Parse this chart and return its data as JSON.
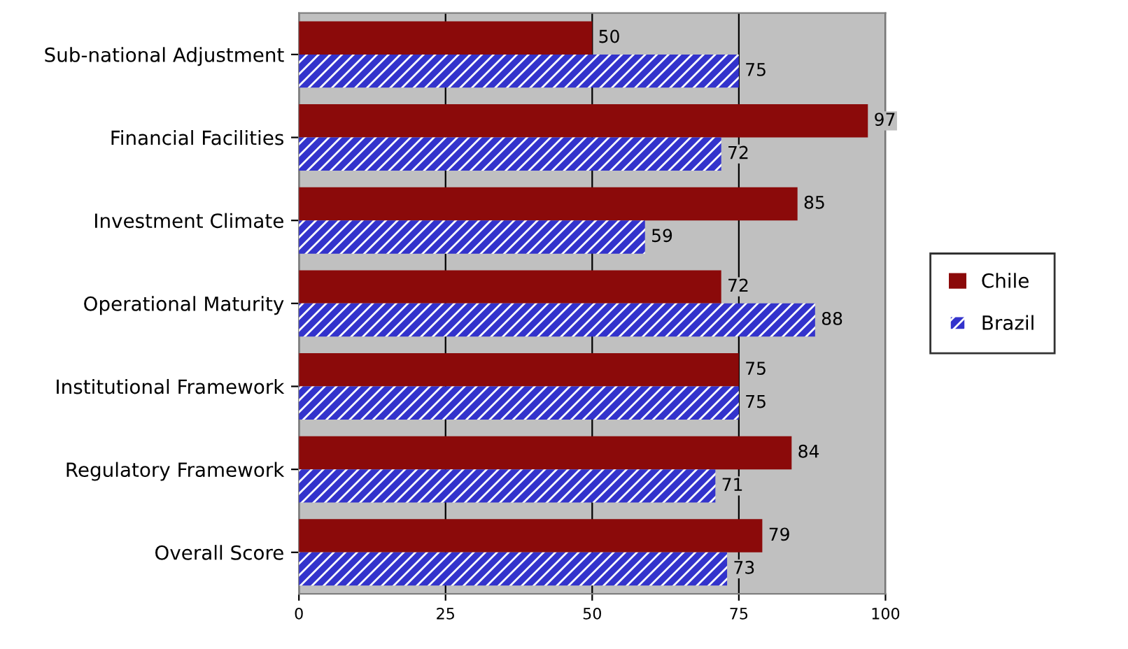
{
  "chart_data": {
    "type": "bar",
    "orientation": "horizontal",
    "categories": [
      "Sub-national Adjustment",
      "Financial Facilities",
      "Investment Climate",
      "Operational Maturity",
      "Institutional Framework",
      "Regulatory Framework",
      "Overall Score"
    ],
    "series": [
      {
        "name": "Chile",
        "color": "#8b0a0a",
        "values": [
          50,
          97,
          85,
          72,
          75,
          84,
          79
        ]
      },
      {
        "name": "Brazil",
        "color": "#3333cc",
        "values": [
          75,
          72,
          59,
          88,
          75,
          71,
          73
        ]
      }
    ],
    "xlim": [
      0,
      100
    ],
    "xticks": [
      0,
      25,
      50,
      75,
      100
    ],
    "grid": "x",
    "legend": "right",
    "data_labels": true
  }
}
